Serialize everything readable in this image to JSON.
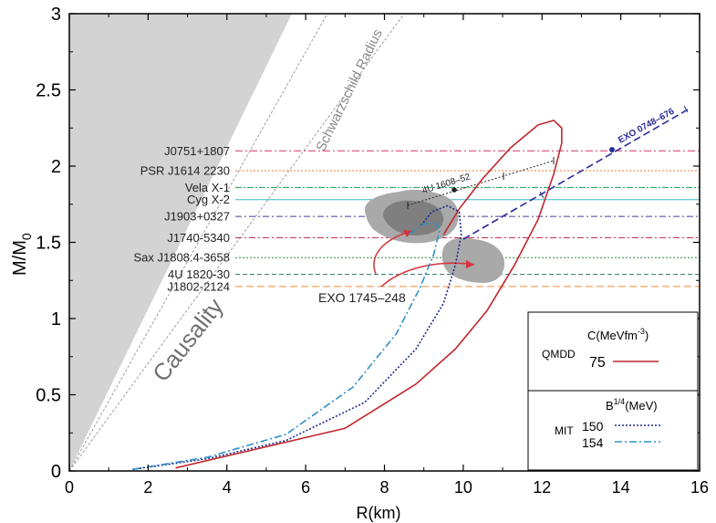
{
  "chart_data": {
    "type": "line",
    "xlabel": "R(km)",
    "ylabel_main": "M/M",
    "ylabel_sub": "0",
    "xlim": [
      0,
      16
    ],
    "ylim": [
      0,
      3
    ],
    "xticks": [
      {
        "v": 0,
        "label": "0"
      },
      {
        "v": 2,
        "label": "2"
      },
      {
        "v": 4,
        "label": "4"
      },
      {
        "v": 6,
        "label": "6"
      },
      {
        "v": 8,
        "label": "8"
      },
      {
        "v": 10,
        "label": "10"
      },
      {
        "v": 12,
        "label": "12"
      },
      {
        "v": 14,
        "label": "14"
      },
      {
        "v": 16,
        "label": "16"
      }
    ],
    "yticks": [
      {
        "v": 0,
        "label": "0"
      },
      {
        "v": 0.5,
        "label": "0.5"
      },
      {
        "v": 1,
        "label": "1"
      },
      {
        "v": 1.5,
        "label": "1.5"
      },
      {
        "v": 2,
        "label": "2"
      },
      {
        "v": 2.5,
        "label": "2.5"
      },
      {
        "v": 3,
        "label": "3"
      }
    ],
    "grid": false,
    "colors": {
      "qmdd": "#c0272d",
      "mit150": "#1f2a8c",
      "mit154": "#2f8fc8",
      "region": "#d3d3d3",
      "guide": "#a0a0a0",
      "exo0748": "#2a2a9a",
      "blob_dark": "#8a8a8a",
      "blob_light": "#a8a8a8",
      "arrow": "#d8323c"
    },
    "regions": {
      "causality_label": "Causality",
      "schwarzschild_label": "Schwarzschild Radius"
    },
    "mass_lines": [
      {
        "name": "J0751+1807",
        "mass": 2.1,
        "color": "#d6336c",
        "dash": "8,3,2,3"
      },
      {
        "name": "PSR J1614   2230",
        "mass": 1.97,
        "color": "#f07a2a",
        "dash": "2,2"
      },
      {
        "name": "Vela X-1",
        "mass": 1.86,
        "color": "#1a9e4a",
        "dash": "7,2,2,2"
      },
      {
        "name": "Cyg X-2",
        "mass": 1.78,
        "color": "#3fb8c8",
        "dash": ""
      },
      {
        "name": "J1903+0327",
        "mass": 1.67,
        "color": "#4a3a9a",
        "dash": "7,3,2,3"
      },
      {
        "name": "J1740-5340",
        "mass": 1.53,
        "color": "#c8324a",
        "dash": "7,3,2,3"
      },
      {
        "name": "Sax J1808.4-3658",
        "mass": 1.4,
        "color": "#2a8a3a",
        "dash": "2,2"
      },
      {
        "name": "4U 1820-30",
        "mass": 1.29,
        "color": "#2a7a6a",
        "dash": "5,3"
      },
      {
        "name": "J1802-2124",
        "mass": 1.21,
        "color": "#f08a3a",
        "dash": "8,4"
      }
    ],
    "series": [
      {
        "legend": "QMDD",
        "value": "75",
        "x": [
          2.7,
          7.0,
          8.8,
          9.8,
          10.6,
          11.3,
          11.9,
          12.3,
          12.5,
          12.5,
          12.3,
          11.9,
          11.2,
          10.5,
          9.9,
          9.5
        ],
        "y": [
          0.02,
          0.28,
          0.57,
          0.8,
          1.05,
          1.35,
          1.65,
          1.95,
          2.15,
          2.25,
          2.3,
          2.27,
          2.12,
          1.92,
          1.72,
          1.55
        ]
      },
      {
        "legend": "MIT",
        "value": "150",
        "x": [
          1.6,
          3.5,
          5.5,
          7.5,
          8.8,
          9.5,
          9.8,
          9.95,
          9.9,
          9.6,
          9.2,
          8.9
        ],
        "y": [
          0.01,
          0.08,
          0.2,
          0.45,
          0.8,
          1.1,
          1.35,
          1.55,
          1.7,
          1.74,
          1.7,
          1.6
        ]
      },
      {
        "legend": "",
        "value": "154",
        "x": [
          1.6,
          3.5,
          5.5,
          7.2,
          8.3,
          8.9,
          9.25,
          9.4,
          9.3,
          9.0,
          8.6
        ],
        "y": [
          0.01,
          0.09,
          0.24,
          0.55,
          0.9,
          1.2,
          1.42,
          1.58,
          1.63,
          1.62,
          1.55
        ]
      }
    ],
    "legend": {
      "box1_title": "C(MeVfm",
      "box1_title_sup": "-3",
      "box1_title_end": ")",
      "box1_group": "QMDD",
      "box1_entry": "75",
      "box2_title": "B",
      "box2_title_sup": "1/4",
      "box2_title_end": "(MeV)",
      "box2_group": "MIT",
      "box2_entry1": "150",
      "box2_entry2": "154"
    },
    "annotations": {
      "exo1745": "EXO 1745–248",
      "u1608": "4U 1608–52",
      "exo0748": "EXO 0748–676"
    }
  }
}
